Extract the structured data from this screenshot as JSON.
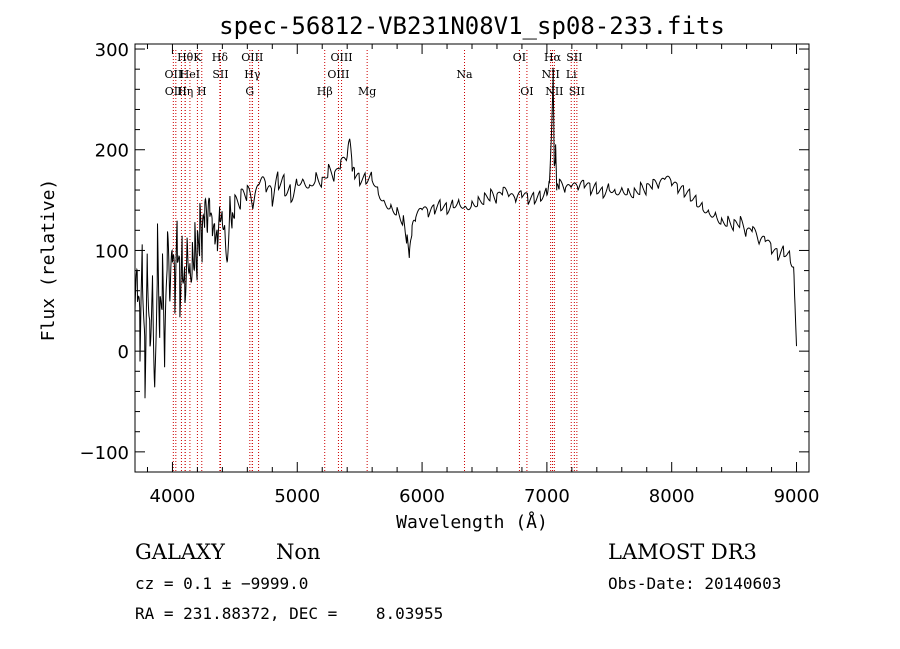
{
  "chart_data": {
    "type": "line",
    "title": "spec-56812-VB231N08V1_sp08-233.fits",
    "xlabel": "Wavelength (Å)",
    "ylabel": "Flux (relative)",
    "xlim": [
      3700,
      9100
    ],
    "ylim": [
      -120,
      305
    ],
    "x_ticks": [
      4000,
      5000,
      6000,
      7000,
      8000,
      9000
    ],
    "x_tick_labels": [
      "4000",
      "5000",
      "6000",
      "7000",
      "8000",
      "9000"
    ],
    "y_ticks": [
      -100,
      0,
      100,
      200,
      300
    ],
    "y_tick_labels": [
      "−100",
      "0",
      "100",
      "200",
      "300"
    ],
    "grid": false,
    "series": [
      {
        "name": "flux",
        "color": "#000000",
        "x": [
          3700,
          3720,
          3740,
          3760,
          3780,
          3800,
          3820,
          3840,
          3860,
          3880,
          3900,
          3920,
          3940,
          3960,
          3980,
          4000,
          4020,
          4040,
          4060,
          4080,
          4100,
          4120,
          4140,
          4160,
          4180,
          4200,
          4220,
          4240,
          4260,
          4280,
          4300,
          4320,
          4340,
          4360,
          4380,
          4400,
          4420,
          4440,
          4460,
          4480,
          4500,
          4550,
          4600,
          4650,
          4700,
          4750,
          4800,
          4850,
          4900,
          4950,
          5000,
          5050,
          5100,
          5150,
          5200,
          5250,
          5300,
          5350,
          5400,
          5420,
          5440,
          5460,
          5500,
          5550,
          5600,
          5650,
          5700,
          5750,
          5800,
          5850,
          5880,
          5900,
          5920,
          5950,
          6000,
          6050,
          6100,
          6150,
          6200,
          6250,
          6300,
          6350,
          6400,
          6450,
          6500,
          6550,
          6600,
          6650,
          6700,
          6750,
          6800,
          6850,
          6900,
          6950,
          7000,
          7020,
          7040,
          7050,
          7060,
          7070,
          7080,
          7100,
          7150,
          7200,
          7250,
          7300,
          7350,
          7400,
          7450,
          7500,
          7550,
          7600,
          7650,
          7700,
          7750,
          7800,
          7850,
          7900,
          7950,
          8000,
          8050,
          8100,
          8150,
          8200,
          8250,
          8300,
          8350,
          8400,
          8450,
          8500,
          8550,
          8600,
          8650,
          8700,
          8750,
          8800,
          8850,
          8900,
          8950,
          8980,
          9000
        ],
        "values": [
          40,
          60,
          10,
          90,
          -20,
          100,
          20,
          80,
          -30,
          110,
          30,
          70,
          -10,
          100,
          40,
          90,
          50,
          110,
          60,
          100,
          70,
          120,
          90,
          100,
          110,
          95,
          120,
          100,
          130,
          110,
          135,
          120,
          115,
          110,
          140,
          135,
          125,
          90,
          150,
          130,
          145,
          150,
          155,
          140,
          165,
          160,
          150,
          170,
          165,
          158,
          170,
          172,
          165,
          175,
          168,
          180,
          172,
          185,
          190,
          210,
          180,
          175,
          170,
          172,
          175,
          160,
          150,
          145,
          140,
          130,
          110,
          95,
          120,
          130,
          140,
          135,
          140,
          145,
          142,
          148,
          150,
          145,
          148,
          150,
          152,
          155,
          150,
          158,
          152,
          148,
          155,
          150,
          152,
          155,
          160,
          170,
          230,
          280,
          180,
          200,
          160,
          165,
          158,
          162,
          160,
          165,
          160,
          162,
          158,
          165,
          160,
          163,
          160,
          158,
          162,
          160,
          165,
          162,
          170,
          165,
          160,
          158,
          155,
          150,
          145,
          140,
          138,
          130,
          130,
          125,
          128,
          115,
          120,
          105,
          110,
          100,
          95,
          100,
          95,
          80,
          5
        ],
        "label": null
      }
    ],
    "line_markers": [
      {
        "x": 4007,
        "label": "OII",
        "row": 2,
        "color": "#cc0000"
      },
      {
        "x": 4027,
        "label": "OIII",
        "row": 3,
        "color": "#cc0000"
      },
      {
        "x": 4102,
        "label": "Hθ",
        "row": 1,
        "color": "#cc0000"
      },
      {
        "x": 4072,
        "label": "I",
        "row": 2,
        "color": "#cc0000"
      },
      {
        "x": 4102,
        "label": "Hη",
        "row": 3,
        "color": "#cc0000"
      },
      {
        "x": 4200,
        "label": "K",
        "row": 1,
        "color": "#cc0000"
      },
      {
        "x": 4140,
        "label": "HeI",
        "row": 2,
        "color": "#cc0000"
      },
      {
        "x": 4235,
        "label": "H",
        "row": 3,
        "color": "#cc0000"
      },
      {
        "x": 4380,
        "label": "Hδ",
        "row": 1,
        "color": "#cc0000"
      },
      {
        "x": 4385,
        "label": "SII",
        "row": 2,
        "color": "#cc0000"
      },
      {
        "x": 4640,
        "label": "OIII",
        "row": 1,
        "color": "#cc0000"
      },
      {
        "x": 4640,
        "label": "Hγ",
        "row": 2,
        "color": "#cc0000"
      },
      {
        "x": 4620,
        "label": "G",
        "row": 3,
        "color": "#cc0000"
      },
      {
        "x": 4690,
        "label": "",
        "row": 0,
        "color": "#cc0000"
      },
      {
        "x": 5220,
        "label": "Hβ",
        "row": 3,
        "color": "#cc0000"
      },
      {
        "x": 5355,
        "label": "OIII",
        "row": 1,
        "color": "#cc0000"
      },
      {
        "x": 5330,
        "label": "OIII",
        "row": 2,
        "color": "#cc0000"
      },
      {
        "x": 5560,
        "label": "Mg",
        "row": 3,
        "color": "#cc0000"
      },
      {
        "x": 6340,
        "label": "Na",
        "row": 2,
        "color": "#cc0000"
      },
      {
        "x": 6780,
        "label": "OI",
        "row": 1,
        "color": "#cc0000"
      },
      {
        "x": 6840,
        "label": "OI",
        "row": 3,
        "color": "#cc0000"
      },
      {
        "x": 7045,
        "label": "Hα",
        "row": 1,
        "color": "#cc0000"
      },
      {
        "x": 7030,
        "label": "NII",
        "row": 2,
        "color": "#cc0000"
      },
      {
        "x": 7060,
        "label": "NII",
        "row": 3,
        "color": "#cc0000"
      },
      {
        "x": 7220,
        "label": "SII",
        "row": 1,
        "color": "#cc0000"
      },
      {
        "x": 7195,
        "label": "Li",
        "row": 2,
        "color": "#cc0000"
      },
      {
        "x": 7240,
        "label": "SII",
        "row": 3,
        "color": "#cc0000"
      }
    ]
  },
  "footer": {
    "object_class": "GALAXY",
    "subclass": "Non",
    "survey": "LAMOST DR3",
    "cz_line": "cz = 0.1 ± −9999.0",
    "obs_date": "Obs-Date: 20140603",
    "coords": "RA = 231.88372, DEC =    8.03955"
  }
}
